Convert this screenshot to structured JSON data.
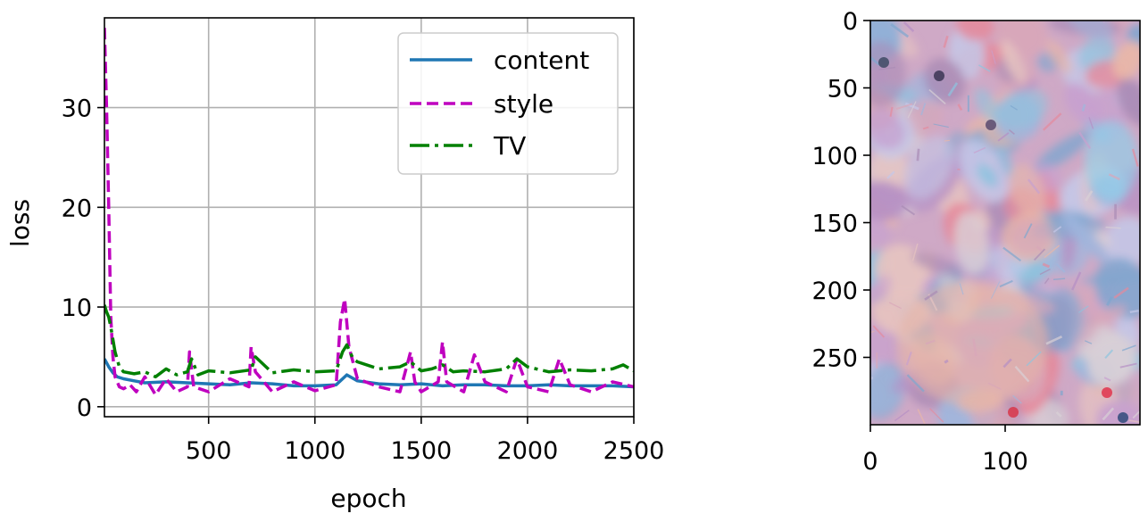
{
  "chart_data": [
    {
      "type": "line",
      "title": "",
      "xlabel": "epoch",
      "ylabel": "loss",
      "xlim": [
        10,
        2500
      ],
      "ylim": [
        -1,
        39
      ],
      "xticks": [
        500,
        1000,
        1500,
        2000,
        2500
      ],
      "xtick_labels": [
        "500",
        "1000",
        "1500",
        "2000",
        "2500"
      ],
      "yticks": [
        0,
        10,
        20,
        30
      ],
      "ytick_labels": [
        "0",
        "10",
        "20",
        "30"
      ],
      "grid": true,
      "legend_position": "upper right",
      "series": [
        {
          "name": "content",
          "color": "#1f77b4",
          "style": "solid",
          "x": [
            10,
            30,
            50,
            70,
            100,
            150,
            200,
            300,
            400,
            500,
            600,
            700,
            800,
            900,
            1000,
            1100,
            1150,
            1200,
            1300,
            1400,
            1500,
            1600,
            1700,
            1800,
            1900,
            2000,
            2100,
            2200,
            2300,
            2400,
            2500
          ],
          "y": [
            4.8,
            4.0,
            3.4,
            3.0,
            2.8,
            2.6,
            2.4,
            2.5,
            2.4,
            2.3,
            2.2,
            2.4,
            2.3,
            2.1,
            2.1,
            2.2,
            3.2,
            2.6,
            2.3,
            2.2,
            2.3,
            2.1,
            2.2,
            2.2,
            2.1,
            2.1,
            2.2,
            2.1,
            2.1,
            2.1,
            2.0
          ]
        },
        {
          "name": "style",
          "color": "#bf00bf",
          "style": "dashed",
          "x": [
            10,
            20,
            30,
            40,
            50,
            60,
            80,
            100,
            130,
            160,
            200,
            250,
            300,
            350,
            400,
            410,
            430,
            500,
            600,
            690,
            700,
            720,
            800,
            900,
            1000,
            1100,
            1120,
            1140,
            1160,
            1200,
            1300,
            1400,
            1450,
            1470,
            1500,
            1580,
            1600,
            1620,
            1700,
            1750,
            1800,
            1900,
            1950,
            2000,
            2100,
            2150,
            2200,
            2300,
            2400,
            2500
          ],
          "y": [
            38,
            30,
            20,
            9,
            5,
            3,
            2.0,
            1.8,
            2.2,
            1.5,
            3.0,
            1.2,
            2.8,
            1.5,
            2.0,
            5.5,
            2.0,
            1.5,
            2.8,
            2.0,
            6.0,
            3.5,
            1.5,
            2.5,
            1.6,
            2.2,
            8.5,
            10.8,
            6.0,
            2.8,
            2.0,
            1.5,
            5.5,
            2.5,
            1.5,
            2.5,
            6.5,
            2.5,
            1.5,
            5.2,
            2.5,
            1.5,
            4.8,
            2.0,
            1.5,
            4.8,
            2.2,
            1.5,
            2.5,
            2.0
          ]
        },
        {
          "name": "TV",
          "color": "#008000",
          "style": "dashdot",
          "x": [
            10,
            20,
            30,
            40,
            60,
            80,
            100,
            150,
            200,
            250,
            300,
            350,
            400,
            420,
            450,
            500,
            600,
            700,
            720,
            800,
            900,
            1000,
            1100,
            1130,
            1150,
            1180,
            1200,
            1300,
            1400,
            1450,
            1500,
            1550,
            1600,
            1650,
            1700,
            1800,
            1900,
            1950,
            2000,
            2100,
            2200,
            2300,
            2400,
            2450,
            2500
          ],
          "y": [
            10.2,
            9.5,
            9.0,
            8.0,
            5.5,
            4.0,
            3.5,
            3.3,
            3.5,
            3.0,
            3.8,
            3.2,
            3.5,
            4.8,
            3.2,
            3.6,
            3.4,
            3.7,
            5.0,
            3.4,
            3.7,
            3.5,
            3.6,
            5.5,
            6.2,
            4.8,
            4.5,
            3.8,
            4.0,
            4.5,
            3.6,
            3.8,
            4.2,
            3.5,
            3.6,
            3.5,
            3.8,
            4.8,
            4.0,
            3.5,
            3.7,
            3.6,
            3.8,
            4.2,
            3.6
          ]
        }
      ]
    },
    {
      "type": "image",
      "xlim": [
        0,
        200
      ],
      "ylim": [
        300,
        0
      ],
      "xticks": [
        0,
        100
      ],
      "xtick_labels": [
        "0",
        "100"
      ],
      "yticks": [
        0,
        50,
        100,
        150,
        200,
        250
      ],
      "ytick_labels": [
        "0",
        "50",
        "100",
        "150",
        "200",
        "250"
      ],
      "palette": [
        "#d8a7b9",
        "#c7a1cf",
        "#9fb6dd",
        "#e8b7a8",
        "#b58fc4",
        "#8dc4df",
        "#e6c3c0",
        "#a98bb5",
        "#c4c8e8",
        "#e48a9c",
        "#7fa6cf",
        "#d9d0d6"
      ]
    }
  ]
}
